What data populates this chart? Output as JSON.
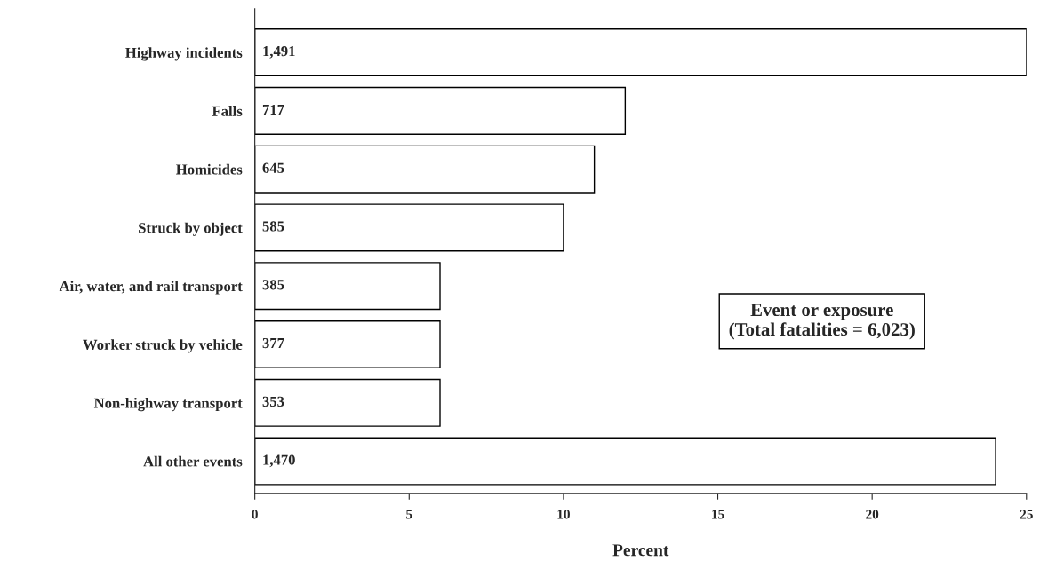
{
  "chart_data": {
    "type": "bar",
    "orientation": "horizontal",
    "xlabel": "Percent",
    "categories": [
      "Highway incidents",
      "Falls",
      "Homicides",
      "Struck by object",
      "Air, water, and rail transport",
      "Worker struck by vehicle",
      "Non-highway transport",
      "All other events"
    ],
    "values": [
      25,
      12,
      11,
      10,
      6,
      6,
      6,
      24
    ],
    "color": "#ffffff",
    "xlim": [
      0,
      25
    ],
    "xticks": [
      0,
      5,
      10,
      15,
      20,
      25
    ],
    "annotations": [
      {
        "text": "1,491",
        "y": "Highway incidents"
      },
      {
        "text": "717",
        "y": "Falls"
      },
      {
        "text": "645",
        "y": "Homicides"
      },
      {
        "text": "585",
        "y": "Struck by object"
      },
      {
        "text": "385",
        "y": "Air, water, and rail transport"
      },
      {
        "text": "377",
        "y": "Worker struck by vehicle"
      },
      {
        "text": "353",
        "y": "Non-highway transport"
      },
      {
        "text": "1,470",
        "y": "All other events"
      },
      "Event or exposure\n(Total fatalities = 6,023)"
    ],
    "grid": false,
    "legend": false
  }
}
